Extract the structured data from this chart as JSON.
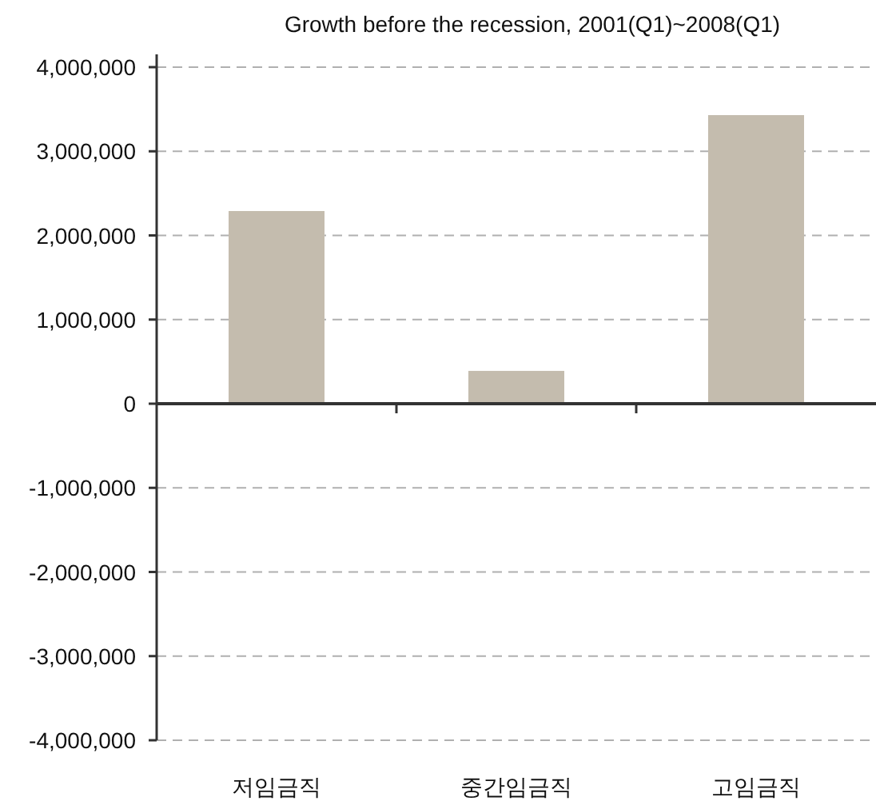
{
  "chart_data": {
    "type": "bar",
    "title": "Growth before the recession, 2001(Q1)~2008(Q1)",
    "categories": [
      "저임금직",
      "중간임금직",
      "고임금직"
    ],
    "values": [
      2290000,
      390000,
      3430000
    ],
    "color": "#c4bcae",
    "ylim": [
      -4000000,
      4000000
    ],
    "yticks": [
      {
        "value": -4000000,
        "label": "-4,000,000"
      },
      {
        "value": -3000000,
        "label": "-3,000,000"
      },
      {
        "value": -2000000,
        "label": "-2,000,000"
      },
      {
        "value": -1000000,
        "label": "-1,000,000"
      },
      0,
      {
        "value": 1000000,
        "label": "1,000,000"
      },
      {
        "value": 2000000,
        "label": "2,000,000"
      },
      {
        "value": 3000000,
        "label": "3,000,000"
      },
      {
        "value": 4000000,
        "label": "4,000,000"
      }
    ],
    "grid": "y"
  }
}
